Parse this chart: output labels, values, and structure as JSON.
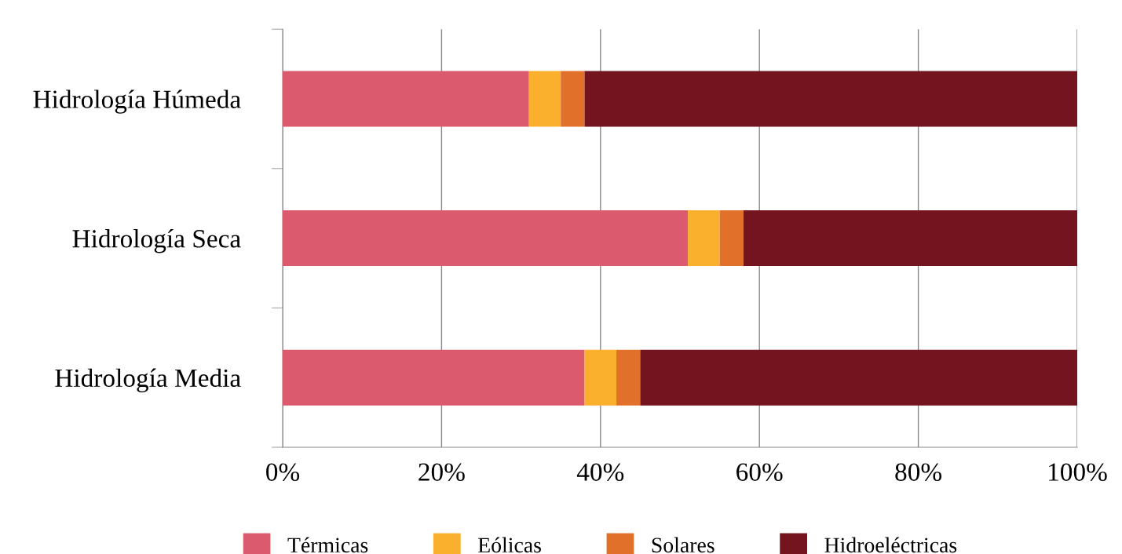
{
  "chart_data": {
    "type": "bar",
    "orientation": "horizontal",
    "stacked": true,
    "categories": [
      "Hidrología Húmeda",
      "Hidrología Seca",
      "Hidrología Media"
    ],
    "series": [
      {
        "name": "Térmicas",
        "color": "#dc5a6e",
        "values": [
          31,
          51,
          38
        ]
      },
      {
        "name": "Eólicas",
        "color": "#fbb02d",
        "values": [
          4,
          4,
          4
        ]
      },
      {
        "name": "Solares",
        "color": "#e0702a",
        "values": [
          3,
          3,
          3
        ]
      },
      {
        "name": "Hidroeléctricas",
        "color": "#74141e",
        "values": [
          62,
          42,
          55
        ]
      }
    ],
    "xlim": [
      0,
      100
    ],
    "xticks": [
      {
        "value": 0,
        "label": "0%"
      },
      {
        "value": 20,
        "label": "20%"
      },
      {
        "value": 40,
        "label": "40%"
      },
      {
        "value": 60,
        "label": "60%"
      },
      {
        "value": 80,
        "label": "80%"
      },
      {
        "value": 100,
        "label": "100%"
      }
    ],
    "grid": "x",
    "legend": "bottom"
  }
}
